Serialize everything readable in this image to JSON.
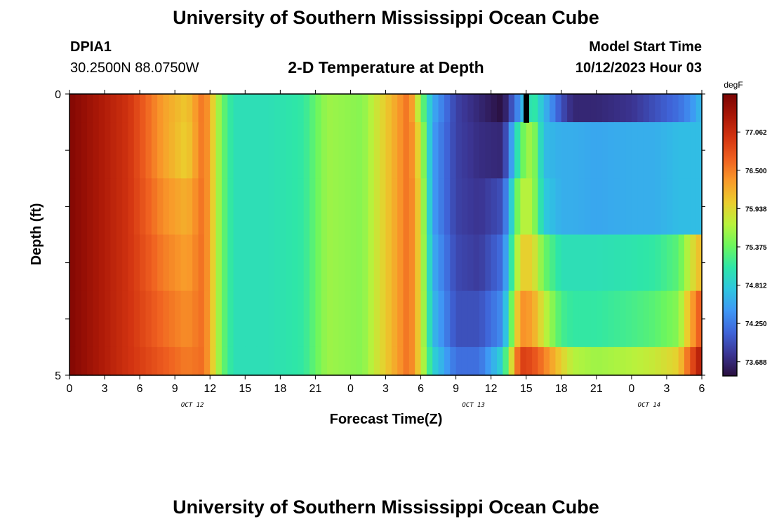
{
  "header": {
    "title": "University of Southern Mississippi Ocean Cube",
    "station_id": "DPIA1",
    "coordinates": "30.2500N  88.0750W",
    "subtitle": "2-D Temperature at Depth",
    "model_start_label": "Model Start Time",
    "model_start_time": "10/12/2023 Hour 03"
  },
  "footer": {
    "title": "University of Southern Mississippi Ocean Cube"
  },
  "chart_data": {
    "type": "heatmap",
    "title": "2-D Temperature at Depth",
    "xlabel": "Forecast Time(Z)",
    "ylabel": "Depth (ft)",
    "x_tick_labels": [
      "0",
      "3",
      "6",
      "9",
      "12",
      "15",
      "18",
      "21",
      "0",
      "3",
      "6",
      "9",
      "12",
      "15",
      "18",
      "21",
      "0",
      "3",
      "6"
    ],
    "date_labels": [
      {
        "label": "OCT 12",
        "at_tick_index": 3.5
      },
      {
        "label": "OCT 13",
        "at_tick_index": 11.5
      },
      {
        "label": "OCT 14",
        "at_tick_index": 16.5
      }
    ],
    "y_tick_labels": [
      "0",
      "5"
    ],
    "ylim": [
      0,
      5
    ],
    "x_range_hours": [
      0,
      54
    ],
    "colorbar": {
      "unit": "degF",
      "tick_labels": [
        "77.062",
        "76.500",
        "75.938",
        "75.375",
        "74.812",
        "74.250",
        "73.688"
      ],
      "range": [
        73.5,
        77.6
      ],
      "colors": [
        "#2a0f3e",
        "#3b3593",
        "#3f64d8",
        "#3f97f5",
        "#2ec6e0",
        "#2ee6a8",
        "#6cf65d",
        "#b8f23c",
        "#ebcd2d",
        "#f99a2a",
        "#ef6020",
        "#d33411",
        "#a91707",
        "#7a0403"
      ]
    },
    "depth_levels": [
      "0-0.5",
      "0.5-1.5",
      "1.5-2.5",
      "2.5-3.5",
      "3.5-4.5",
      "4.5-5"
    ],
    "time_knots_hours": [
      0,
      5,
      8,
      10,
      11.5,
      13,
      14,
      17,
      20,
      22,
      25,
      28,
      29,
      30,
      31,
      33,
      35,
      37,
      38.5,
      39.5,
      40.5,
      42,
      43,
      45,
      48,
      50,
      52,
      53,
      54
    ],
    "temperature_by_depth": [
      [
        77.55,
        77.0,
        76.3,
        76.05,
        76.6,
        75.4,
        75.0,
        75.0,
        75.1,
        75.6,
        75.5,
        76.3,
        76.6,
        75.5,
        74.6,
        73.9,
        73.7,
        73.5,
        74.5,
        75.2,
        74.7,
        74.0,
        73.7,
        73.7,
        73.8,
        74.0,
        74.2,
        74.4,
        74.7
      ],
      [
        77.55,
        77.0,
        76.3,
        76.0,
        76.6,
        75.4,
        75.0,
        75.0,
        75.1,
        75.6,
        75.5,
        76.3,
        76.6,
        75.8,
        74.5,
        73.9,
        73.75,
        73.7,
        75.3,
        75.7,
        74.7,
        74.6,
        74.6,
        74.55,
        74.6,
        74.6,
        74.7,
        74.7,
        74.7
      ],
      [
        77.55,
        77.0,
        76.4,
        76.2,
        76.6,
        75.4,
        75.0,
        75.0,
        75.1,
        75.6,
        75.5,
        76.3,
        76.6,
        75.9,
        74.5,
        73.9,
        73.8,
        74.0,
        75.7,
        75.7,
        74.8,
        74.6,
        74.6,
        74.55,
        74.6,
        74.6,
        74.7,
        74.7,
        74.7
      ],
      [
        77.55,
        77.0,
        76.5,
        76.3,
        76.6,
        75.4,
        75.0,
        75.0,
        75.1,
        75.6,
        75.5,
        76.3,
        76.6,
        75.9,
        74.6,
        73.95,
        73.85,
        74.2,
        76.0,
        76.0,
        75.4,
        75.0,
        75.0,
        75.0,
        75.05,
        75.1,
        75.3,
        75.8,
        76.2
      ],
      [
        77.55,
        77.0,
        76.6,
        76.4,
        76.6,
        75.4,
        75.0,
        75.0,
        75.1,
        75.6,
        75.5,
        76.3,
        76.6,
        75.9,
        74.7,
        74.0,
        74.0,
        74.4,
        76.4,
        76.3,
        75.8,
        75.2,
        75.1,
        75.1,
        75.2,
        75.3,
        75.5,
        76.2,
        76.8
      ],
      [
        77.55,
        77.0,
        76.7,
        76.5,
        76.6,
        75.4,
        75.0,
        75.0,
        75.1,
        75.6,
        75.5,
        76.3,
        76.6,
        75.9,
        74.9,
        74.2,
        74.2,
        74.9,
        76.9,
        76.8,
        76.5,
        76.0,
        75.7,
        75.6,
        75.7,
        75.8,
        76.0,
        76.7,
        77.3
      ]
    ]
  }
}
